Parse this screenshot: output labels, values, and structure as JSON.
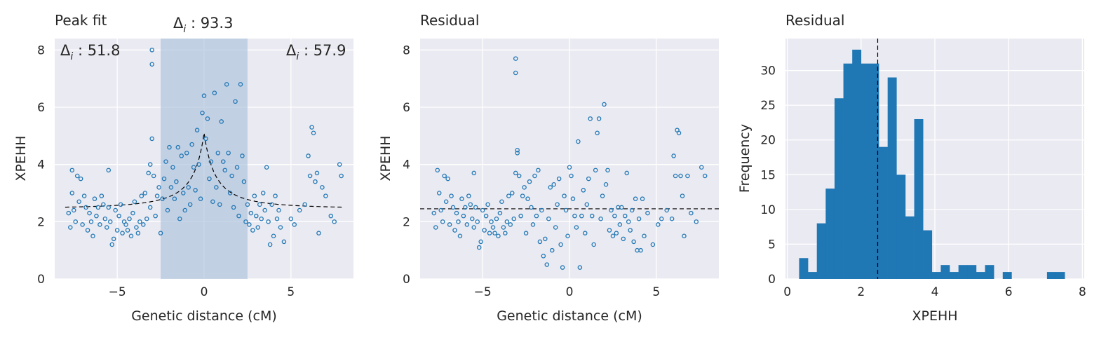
{
  "colors": {
    "panel_bg": "#eaeaf2",
    "series": "#1f77b4",
    "highlight": "#b0c4de",
    "fit_line": "#000000"
  },
  "chart_data": [
    {
      "type": "scatter",
      "title": "Peak fit",
      "xlabel": "Genetic distance (cM)",
      "ylabel": "XPEHH",
      "xlim": [
        -8.6,
        8.6
      ],
      "ylim": [
        0,
        8.4
      ],
      "xticks": [
        "−5",
        "0",
        "5"
      ],
      "xtick_values": [
        -5,
        0,
        5
      ],
      "yticks": [
        "0",
        "2",
        "4",
        "6",
        "8"
      ],
      "ytick_values": [
        0,
        2,
        4,
        6,
        8
      ],
      "grid": true,
      "highlight_region": [
        -2.5,
        2.5
      ],
      "fit_curve": {
        "baseline": 2.45,
        "peak_x": 0,
        "peak_y": 5.1,
        "width": 1.4,
        "style": "dashed"
      },
      "annotations": [
        {
          "text": "Δ",
          "sub": "i",
          "rest": " : 51.8",
          "position": "top-left"
        },
        {
          "text": "Δ",
          "sub": "i",
          "rest": " : 93.3",
          "position": "above-center"
        },
        {
          "text": "Δ",
          "sub": "i",
          "rest": " : 57.9",
          "position": "top-right"
        }
      ],
      "points": [
        [
          -7.8,
          2.3
        ],
        [
          -7.7,
          1.8
        ],
        [
          -7.6,
          3.8
        ],
        [
          -7.6,
          3.0
        ],
        [
          -7.5,
          2.4
        ],
        [
          -7.4,
          2.0
        ],
        [
          -7.3,
          3.6
        ],
        [
          -7.2,
          2.7
        ],
        [
          -7.1,
          3.5
        ],
        [
          -7.0,
          1.9
        ],
        [
          -6.9,
          2.9
        ],
        [
          -6.8,
          2.5
        ],
        [
          -6.7,
          1.7
        ],
        [
          -6.6,
          2.3
        ],
        [
          -6.5,
          2.0
        ],
        [
          -6.4,
          1.5
        ],
        [
          -6.3,
          2.8
        ],
        [
          -6.2,
          2.2
        ],
        [
          -6.1,
          2.5
        ],
        [
          -6.0,
          1.9
        ],
        [
          -5.9,
          2.9
        ],
        [
          -5.8,
          2.6
        ],
        [
          -5.7,
          2.1
        ],
        [
          -5.6,
          1.8
        ],
        [
          -5.5,
          2.5
        ],
        [
          -5.5,
          3.8
        ],
        [
          -5.4,
          2.0
        ],
        [
          -5.3,
          1.2
        ],
        [
          -5.2,
          1.4
        ],
        [
          -5.1,
          2.4
        ],
        [
          -5.0,
          1.7
        ],
        [
          -4.9,
          2.2
        ],
        [
          -4.8,
          2.6
        ],
        [
          -4.7,
          1.6
        ],
        [
          -4.6,
          2.0
        ],
        [
          -4.5,
          1.9
        ],
        [
          -4.4,
          1.7
        ],
        [
          -4.3,
          2.1
        ],
        [
          -4.2,
          1.5
        ],
        [
          -4.1,
          2.3
        ],
        [
          -4.0,
          2.7
        ],
        [
          -3.9,
          1.8
        ],
        [
          -3.8,
          1.6
        ],
        [
          -3.7,
          2.0
        ],
        [
          -3.6,
          2.9
        ],
        [
          -3.5,
          1.9
        ],
        [
          -3.4,
          3.0
        ],
        [
          -3.3,
          2.1
        ],
        [
          -3.2,
          3.7
        ],
        [
          -3.1,
          4.0
        ],
        [
          -3.1,
          2.5
        ],
        [
          -3.0,
          4.9
        ],
        [
          -3.0,
          8.0
        ],
        [
          -3.0,
          7.5
        ],
        [
          -2.9,
          3.6
        ],
        [
          -2.8,
          2.2
        ],
        [
          -2.7,
          2.9
        ],
        [
          -2.6,
          3.2
        ],
        [
          -2.5,
          1.6
        ],
        [
          -2.4,
          2.8
        ],
        [
          -2.3,
          3.5
        ],
        [
          -2.2,
          4.1
        ],
        [
          -2.1,
          2.4
        ],
        [
          -2.0,
          4.6
        ],
        [
          -1.9,
          3.2
        ],
        [
          -1.8,
          3.9
        ],
        [
          -1.7,
          2.8
        ],
        [
          -1.6,
          3.4
        ],
        [
          -1.5,
          4.6
        ],
        [
          -1.4,
          2.1
        ],
        [
          -1.3,
          4.3
        ],
        [
          -1.2,
          3.0
        ],
        [
          -1.1,
          2.4
        ],
        [
          -1.0,
          4.4
        ],
        [
          -0.9,
          3.2
        ],
        [
          -0.8,
          2.6
        ],
        [
          -0.7,
          4.7
        ],
        [
          -0.6,
          3.9
        ],
        [
          -0.5,
          3.1
        ],
        [
          -0.4,
          5.2
        ],
        [
          -0.3,
          4.0
        ],
        [
          -0.2,
          2.8
        ],
        [
          -0.1,
          5.8
        ],
        [
          0.0,
          6.4
        ],
        [
          0.1,
          4.9
        ],
        [
          0.2,
          5.6
        ],
        [
          0.3,
          3.5
        ],
        [
          0.4,
          4.1
        ],
        [
          0.5,
          2.7
        ],
        [
          0.6,
          6.5
        ],
        [
          0.7,
          3.2
        ],
        [
          0.8,
          4.4
        ],
        [
          0.9,
          2.6
        ],
        [
          1.0,
          5.5
        ],
        [
          1.1,
          4.1
        ],
        [
          1.2,
          3.8
        ],
        [
          1.3,
          6.8
        ],
        [
          1.4,
          4.4
        ],
        [
          1.5,
          3.0
        ],
        [
          1.6,
          3.6
        ],
        [
          1.7,
          2.5
        ],
        [
          1.8,
          6.2
        ],
        [
          1.9,
          3.9
        ],
        [
          2.0,
          2.2
        ],
        [
          2.1,
          6.8
        ],
        [
          2.2,
          4.3
        ],
        [
          2.3,
          3.4
        ],
        [
          2.4,
          2.0
        ],
        [
          2.5,
          2.6
        ],
        [
          2.6,
          1.9
        ],
        [
          2.7,
          2.3
        ],
        [
          2.8,
          1.7
        ],
        [
          2.9,
          2.9
        ],
        [
          3.0,
          2.2
        ],
        [
          3.1,
          1.8
        ],
        [
          3.2,
          2.6
        ],
        [
          3.3,
          2.1
        ],
        [
          3.4,
          3.0
        ],
        [
          3.5,
          2.4
        ],
        [
          3.6,
          3.9
        ],
        [
          3.7,
          2.0
        ],
        [
          3.8,
          1.2
        ],
        [
          3.9,
          2.6
        ],
        [
          4.0,
          1.5
        ],
        [
          4.1,
          2.9
        ],
        [
          4.2,
          2.1
        ],
        [
          4.3,
          2.4
        ],
        [
          4.4,
          1.8
        ],
        [
          4.6,
          1.3
        ],
        [
          5.0,
          2.1
        ],
        [
          5.2,
          1.9
        ],
        [
          5.5,
          2.4
        ],
        [
          5.8,
          2.6
        ],
        [
          6.0,
          4.3
        ],
        [
          6.1,
          3.6
        ],
        [
          6.2,
          5.3
        ],
        [
          6.3,
          5.1
        ],
        [
          6.4,
          3.4
        ],
        [
          6.5,
          3.7
        ],
        [
          6.6,
          1.6
        ],
        [
          6.8,
          3.2
        ],
        [
          7.0,
          2.9
        ],
        [
          7.3,
          2.2
        ],
        [
          7.5,
          2.0
        ],
        [
          7.8,
          4.0
        ],
        [
          7.9,
          3.6
        ]
      ]
    },
    {
      "type": "scatter",
      "title": "Residual",
      "xlabel": "Genetic distance (cM)",
      "ylabel": "XPEHH",
      "xlim": [
        -8.6,
        8.6
      ],
      "ylim": [
        0,
        8.4
      ],
      "xticks": [
        "−5",
        "0",
        "5"
      ],
      "xtick_values": [
        -5,
        0,
        5
      ],
      "yticks": [
        "0",
        "2",
        "4",
        "6",
        "8"
      ],
      "ytick_values": [
        0,
        2,
        4,
        6,
        8
      ],
      "grid": true,
      "reference_line_y": 2.45,
      "points": [
        [
          -7.8,
          2.3
        ],
        [
          -7.7,
          1.8
        ],
        [
          -7.6,
          3.8
        ],
        [
          -7.5,
          3.0
        ],
        [
          -7.4,
          2.4
        ],
        [
          -7.3,
          2.0
        ],
        [
          -7.2,
          3.6
        ],
        [
          -7.1,
          2.7
        ],
        [
          -7.0,
          3.5
        ],
        [
          -6.9,
          1.9
        ],
        [
          -6.8,
          2.9
        ],
        [
          -6.7,
          2.5
        ],
        [
          -6.6,
          1.7
        ],
        [
          -6.5,
          2.3
        ],
        [
          -6.4,
          2.0
        ],
        [
          -6.3,
          1.5
        ],
        [
          -6.2,
          2.8
        ],
        [
          -6.1,
          2.2
        ],
        [
          -6.0,
          2.5
        ],
        [
          -5.9,
          1.9
        ],
        [
          -5.8,
          2.9
        ],
        [
          -5.7,
          2.6
        ],
        [
          -5.6,
          2.1
        ],
        [
          -5.5,
          1.8
        ],
        [
          -5.4,
          2.5
        ],
        [
          -5.5,
          3.7
        ],
        [
          -5.3,
          2.0
        ],
        [
          -5.2,
          1.1
        ],
        [
          -5.1,
          1.3
        ],
        [
          -5.0,
          2.4
        ],
        [
          -4.9,
          1.7
        ],
        [
          -4.8,
          2.2
        ],
        [
          -4.7,
          2.6
        ],
        [
          -4.6,
          1.6
        ],
        [
          -4.5,
          2.0
        ],
        [
          -4.4,
          1.8
        ],
        [
          -4.3,
          1.6
        ],
        [
          -4.2,
          2.1
        ],
        [
          -4.1,
          1.5
        ],
        [
          -4.0,
          2.3
        ],
        [
          -3.9,
          2.7
        ],
        [
          -3.8,
          1.8
        ],
        [
          -3.7,
          1.6
        ],
        [
          -3.6,
          2.0
        ],
        [
          -3.5,
          2.9
        ],
        [
          -3.4,
          1.9
        ],
        [
          -3.3,
          3.0
        ],
        [
          -3.2,
          2.1
        ],
        [
          -3.1,
          3.7
        ],
        [
          -3.1,
          7.2
        ],
        [
          -3.1,
          7.7
        ],
        [
          -3.0,
          4.5
        ],
        [
          -3.0,
          4.4
        ],
        [
          -2.9,
          3.6
        ],
        [
          -2.8,
          2.2
        ],
        [
          -2.7,
          2.9
        ],
        [
          -2.6,
          3.2
        ],
        [
          -2.5,
          1.6
        ],
        [
          -2.4,
          2.8
        ],
        [
          -2.3,
          3.4
        ],
        [
          -2.2,
          2.5
        ],
        [
          -2.1,
          1.9
        ],
        [
          -2.0,
          3.6
        ],
        [
          -1.9,
          2.2
        ],
        [
          -1.8,
          3.8
        ],
        [
          -1.7,
          1.3
        ],
        [
          -1.6,
          2.4
        ],
        [
          -1.5,
          0.8
        ],
        [
          -1.4,
          1.4
        ],
        [
          -1.3,
          0.5
        ],
        [
          -1.2,
          2.1
        ],
        [
          -1.1,
          3.2
        ],
        [
          -1.0,
          1.0
        ],
        [
          -0.9,
          3.3
        ],
        [
          -0.8,
          1.8
        ],
        [
          -0.7,
          2.6
        ],
        [
          -0.6,
          3.5
        ],
        [
          -0.5,
          1.2
        ],
        [
          -0.4,
          0.4
        ],
        [
          -0.3,
          2.9
        ],
        [
          -0.2,
          2.4
        ],
        [
          -0.1,
          1.5
        ],
        [
          0.0,
          3.9
        ],
        [
          0.1,
          3.6
        ],
        [
          0.2,
          2.8
        ],
        [
          0.3,
          2.2
        ],
        [
          0.4,
          1.8
        ],
        [
          0.5,
          4.8
        ],
        [
          0.6,
          0.4
        ],
        [
          0.7,
          2.2
        ],
        [
          0.8,
          3.1
        ],
        [
          0.9,
          1.6
        ],
        [
          1.0,
          2.6
        ],
        [
          1.1,
          3.5
        ],
        [
          1.2,
          5.6
        ],
        [
          1.3,
          2.2
        ],
        [
          1.4,
          1.2
        ],
        [
          1.5,
          3.8
        ],
        [
          1.6,
          5.1
        ],
        [
          1.7,
          5.6
        ],
        [
          1.8,
          2.1
        ],
        [
          1.9,
          2.9
        ],
        [
          2.0,
          6.1
        ],
        [
          2.1,
          3.3
        ],
        [
          2.2,
          3.8
        ],
        [
          2.3,
          1.7
        ],
        [
          2.4,
          2.4
        ],
        [
          2.5,
          1.5
        ],
        [
          2.6,
          2.2
        ],
        [
          2.7,
          1.6
        ],
        [
          2.8,
          2.5
        ],
        [
          2.9,
          1.9
        ],
        [
          3.0,
          2.5
        ],
        [
          3.1,
          1.4
        ],
        [
          3.2,
          2.2
        ],
        [
          3.3,
          3.7
        ],
        [
          3.4,
          2.0
        ],
        [
          3.5,
          1.7
        ],
        [
          3.6,
          2.4
        ],
        [
          3.7,
          1.3
        ],
        [
          3.8,
          2.8
        ],
        [
          3.9,
          1.0
        ],
        [
          4.0,
          2.1
        ],
        [
          4.1,
          1.0
        ],
        [
          4.2,
          2.8
        ],
        [
          4.3,
          1.5
        ],
        [
          4.5,
          2.3
        ],
        [
          4.8,
          1.2
        ],
        [
          5.1,
          1.9
        ],
        [
          5.3,
          2.1
        ],
        [
          5.6,
          2.4
        ],
        [
          5.9,
          2.1
        ],
        [
          6.0,
          4.3
        ],
        [
          6.1,
          3.6
        ],
        [
          6.2,
          5.2
        ],
        [
          6.3,
          5.1
        ],
        [
          6.4,
          3.6
        ],
        [
          6.5,
          2.9
        ],
        [
          6.6,
          1.5
        ],
        [
          6.8,
          3.6
        ],
        [
          7.0,
          2.3
        ],
        [
          7.3,
          2.0
        ],
        [
          7.6,
          3.9
        ],
        [
          7.8,
          3.6
        ]
      ]
    },
    {
      "type": "bar",
      "title": "Residual",
      "xlabel": "XPEHH",
      "ylabel": "Frequency",
      "xlim": [
        -0.05,
        8.05
      ],
      "ylim": [
        0,
        34.6
      ],
      "xticks": [
        "0",
        "2",
        "4",
        "6",
        "8"
      ],
      "xtick_values": [
        0,
        2,
        4,
        6,
        8
      ],
      "yticks": [
        "0",
        "5",
        "10",
        "15",
        "20",
        "25",
        "30"
      ],
      "ytick_values": [
        0,
        5,
        10,
        15,
        20,
        25,
        30
      ],
      "grid": true,
      "reference_line_x": 2.45,
      "bin_start": 0.32,
      "bin_width": 0.24,
      "values": [
        3,
        1,
        8,
        13,
        26,
        31,
        33,
        31,
        31,
        19,
        29,
        15,
        9,
        23,
        7,
        1,
        2,
        1,
        2,
        2,
        1,
        2,
        0,
        1,
        0,
        0,
        0,
        0,
        1,
        1
      ]
    }
  ]
}
